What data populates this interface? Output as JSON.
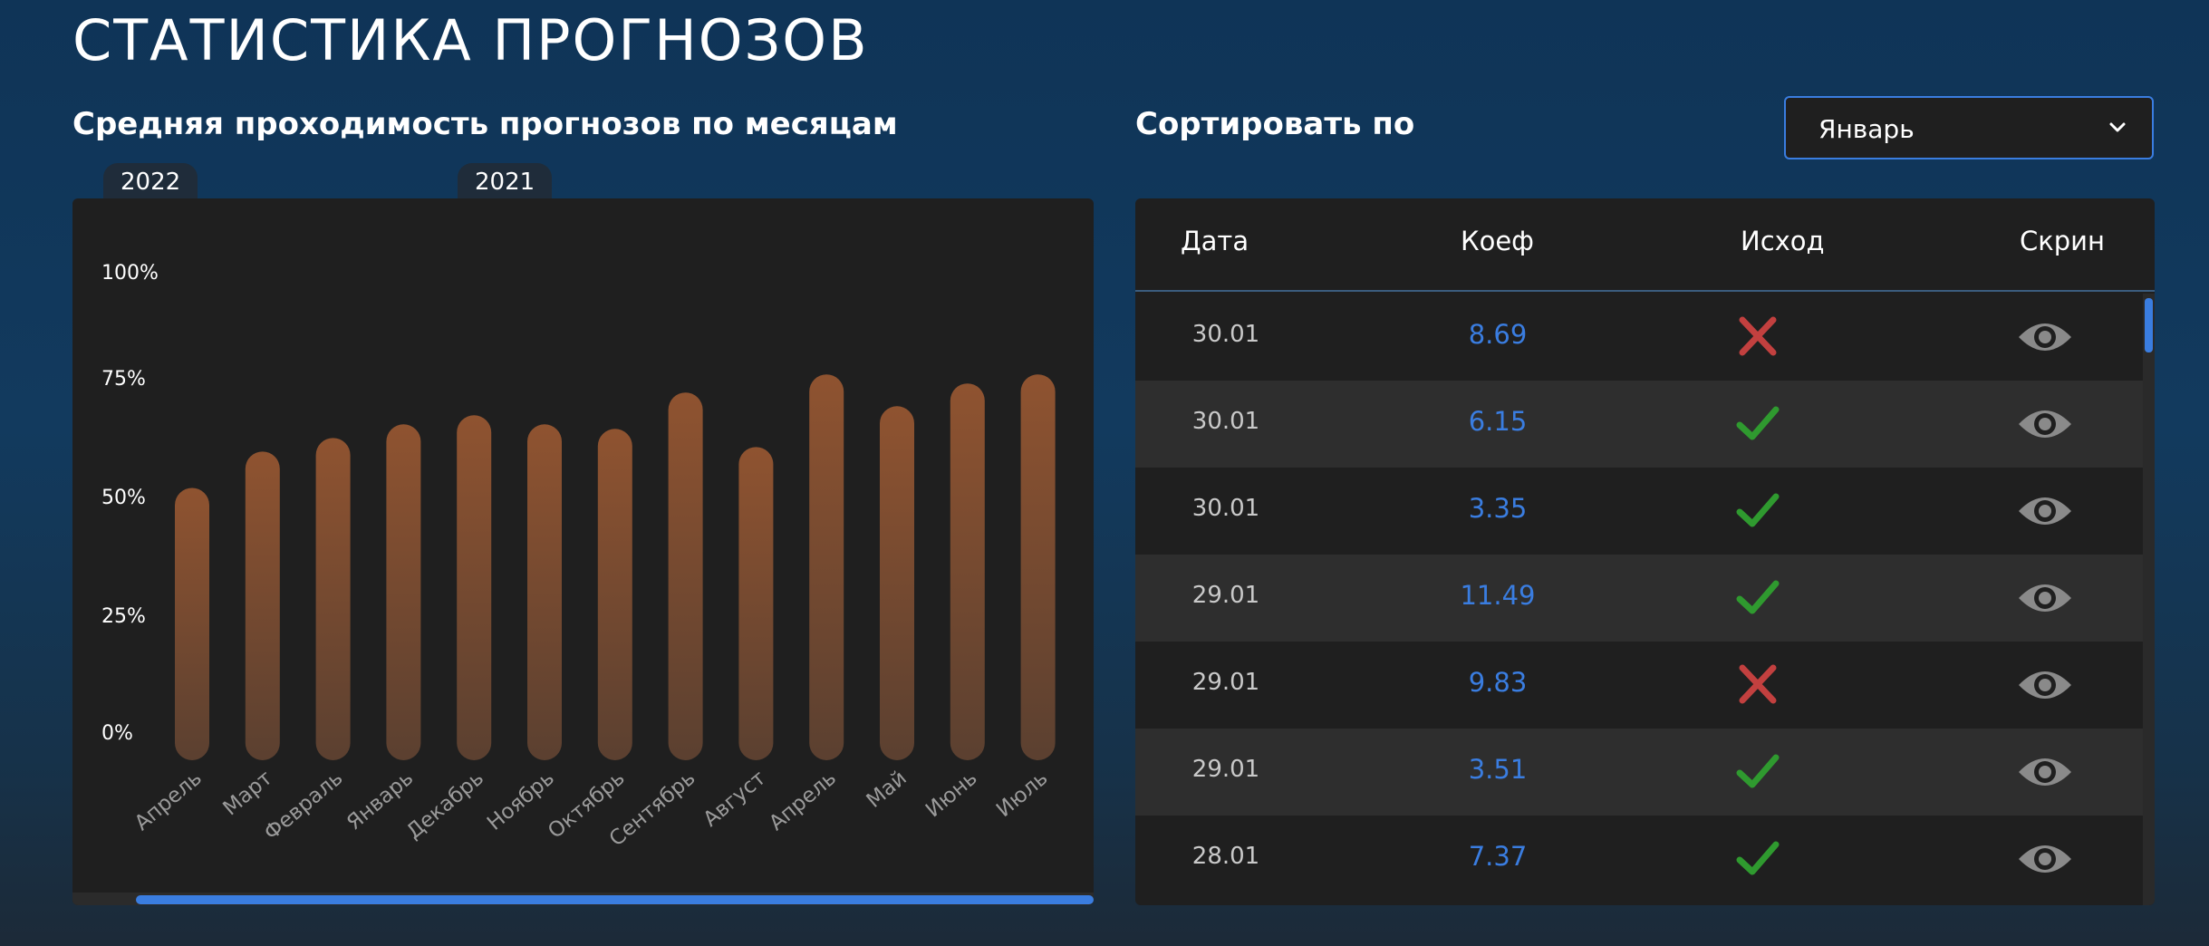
{
  "page": {
    "title": "СТАТИСТИКА ПРОГНОЗОВ"
  },
  "chart_section": {
    "title": "Средняя проходимость прогнозов по месяцам",
    "year_tabs": [
      "2022",
      "2021"
    ]
  },
  "colors": {
    "bar_top": "#8f5330",
    "bar_bottom": "#5b4030",
    "accent": "#3a7de0",
    "win": "#2f9a2f",
    "loss": "#c2403f",
    "eye": "#8a8a8a"
  },
  "chart_data": {
    "type": "bar",
    "title": "Средняя проходимость прогнозов по месяцам",
    "categories": [
      "Апрель",
      "Март",
      "Февраль",
      "Январь",
      "Декабрь",
      "Ноябрь",
      "Октябрь",
      "Сентябрь",
      "Август",
      "Апрель",
      "Май",
      "Июнь",
      "Июль"
    ],
    "values": [
      56,
      64,
      67,
      70,
      72,
      70,
      69,
      77,
      65,
      81,
      74,
      79,
      81
    ],
    "ylim": [
      0,
      100
    ],
    "yticks": [
      "0%",
      "25%",
      "50%",
      "75%",
      "100%"
    ],
    "xlabel": "",
    "ylabel": "",
    "grid": false,
    "legend": "none"
  },
  "sort": {
    "label": "Сортировать по",
    "selected": "Январь",
    "chevron_icon": "chevron-down-icon"
  },
  "table": {
    "headers": {
      "date": "Дата",
      "koef": "Коеф",
      "result": "Исход",
      "screen": "Скрин"
    },
    "rows": [
      {
        "date": "30.01",
        "koef": "8.69",
        "result": "loss"
      },
      {
        "date": "30.01",
        "koef": "6.15",
        "result": "win"
      },
      {
        "date": "30.01",
        "koef": "3.35",
        "result": "win"
      },
      {
        "date": "29.01",
        "koef": "11.49",
        "result": "win"
      },
      {
        "date": "29.01",
        "koef": "9.83",
        "result": "loss"
      },
      {
        "date": "29.01",
        "koef": "3.51",
        "result": "win"
      },
      {
        "date": "28.01",
        "koef": "7.37",
        "result": "win"
      }
    ],
    "result_icons": {
      "win": "check-icon",
      "loss": "cross-icon"
    },
    "screen_icon": "eye-icon"
  }
}
